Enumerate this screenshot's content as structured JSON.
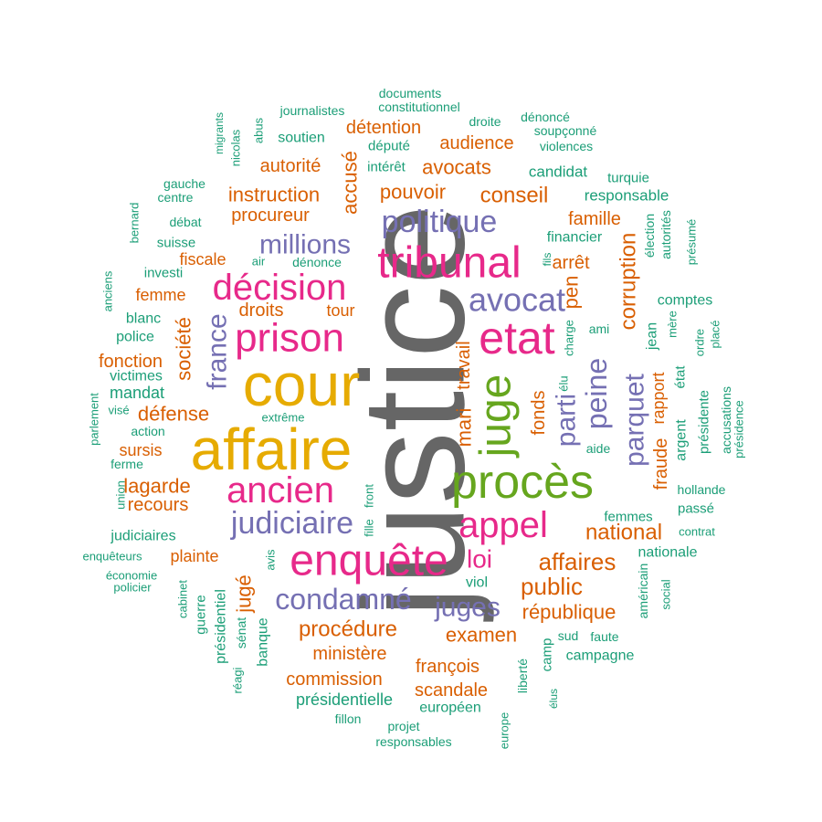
{
  "colors": {
    "teal": "#1b9e77",
    "orange": "#d95f02",
    "purple": "#7570b3",
    "magenta": "#e7298a",
    "green": "#66a61e",
    "gold": "#e6ab02",
    "dark": "#666666"
  },
  "words": [
    {
      "text": "justice",
      "color": "dark"
    },
    {
      "text": "affaire",
      "color": "gold"
    },
    {
      "text": "cour",
      "color": "gold"
    },
    {
      "text": "procès",
      "color": "green"
    },
    {
      "text": "juge",
      "color": "green"
    },
    {
      "text": "etat",
      "color": "magenta"
    },
    {
      "text": "tribunal",
      "color": "magenta"
    },
    {
      "text": "enquête",
      "color": "magenta"
    },
    {
      "text": "prison",
      "color": "magenta"
    },
    {
      "text": "décision",
      "color": "magenta"
    },
    {
      "text": "ancien",
      "color": "magenta"
    },
    {
      "text": "appel",
      "color": "magenta"
    },
    {
      "text": "avocat",
      "color": "purple"
    },
    {
      "text": "politique",
      "color": "purple"
    },
    {
      "text": "millions",
      "color": "purple"
    },
    {
      "text": "judiciaire",
      "color": "purple"
    },
    {
      "text": "condamné",
      "color": "purple"
    },
    {
      "text": "juges",
      "color": "purple"
    },
    {
      "text": "peine",
      "color": "purple"
    },
    {
      "text": "parti",
      "color": "purple"
    },
    {
      "text": "parquet",
      "color": "purple"
    },
    {
      "text": "france",
      "color": "purple"
    },
    {
      "text": "loi",
      "color": "magenta"
    },
    {
      "text": "public",
      "color": "orange"
    },
    {
      "text": "affaires",
      "color": "orange"
    },
    {
      "text": "national",
      "color": "orange"
    },
    {
      "text": "procédure",
      "color": "orange"
    },
    {
      "text": "examen",
      "color": "orange"
    },
    {
      "text": "république",
      "color": "orange"
    },
    {
      "text": "corruption",
      "color": "orange"
    },
    {
      "text": "conseil",
      "color": "orange"
    },
    {
      "text": "pouvoir",
      "color": "orange"
    },
    {
      "text": "avocats",
      "color": "orange"
    },
    {
      "text": "audience",
      "color": "orange"
    },
    {
      "text": "instruction",
      "color": "orange"
    },
    {
      "text": "procureur",
      "color": "orange"
    },
    {
      "text": "autorité",
      "color": "orange"
    },
    {
      "text": "détention",
      "color": "orange"
    },
    {
      "text": "accusé",
      "color": "orange"
    },
    {
      "text": "famille",
      "color": "orange"
    },
    {
      "text": "arrêt",
      "color": "orange"
    },
    {
      "text": "pen",
      "color": "orange"
    },
    {
      "text": "mari",
      "color": "orange"
    },
    {
      "text": "travail",
      "color": "orange"
    },
    {
      "text": "fonds",
      "color": "orange"
    },
    {
      "text": "fraude",
      "color": "orange"
    },
    {
      "text": "rapport",
      "color": "orange"
    },
    {
      "text": "lagarde",
      "color": "orange"
    },
    {
      "text": "recours",
      "color": "orange"
    },
    {
      "text": "défense",
      "color": "orange"
    },
    {
      "text": "société",
      "color": "orange"
    },
    {
      "text": "fonction",
      "color": "orange"
    },
    {
      "text": "droits",
      "color": "orange"
    },
    {
      "text": "tour",
      "color": "orange"
    },
    {
      "text": "fiscale",
      "color": "orange"
    },
    {
      "text": "femme",
      "color": "orange"
    },
    {
      "text": "sursis",
      "color": "orange"
    },
    {
      "text": "plainte",
      "color": "orange"
    },
    {
      "text": "jugé",
      "color": "orange"
    },
    {
      "text": "commission",
      "color": "orange"
    },
    {
      "text": "ministère",
      "color": "orange"
    },
    {
      "text": "françois",
      "color": "orange"
    },
    {
      "text": "scandale",
      "color": "orange"
    },
    {
      "text": "documents",
      "color": "teal"
    },
    {
      "text": "constitutionnel",
      "color": "teal"
    },
    {
      "text": "journalistes",
      "color": "teal"
    },
    {
      "text": "droite",
      "color": "teal"
    },
    {
      "text": "dénoncé",
      "color": "teal"
    },
    {
      "text": "soupçonné",
      "color": "teal"
    },
    {
      "text": "violences",
      "color": "teal"
    },
    {
      "text": "migrants",
      "color": "teal"
    },
    {
      "text": "nicolas",
      "color": "teal"
    },
    {
      "text": "abus",
      "color": "teal"
    },
    {
      "text": "soutien",
      "color": "teal"
    },
    {
      "text": "député",
      "color": "teal"
    },
    {
      "text": "intérêt",
      "color": "teal"
    },
    {
      "text": "candidat",
      "color": "teal"
    },
    {
      "text": "turquie",
      "color": "teal"
    },
    {
      "text": "gauche",
      "color": "teal"
    },
    {
      "text": "centre",
      "color": "teal"
    },
    {
      "text": "responsable",
      "color": "teal"
    },
    {
      "text": "bernard",
      "color": "teal"
    },
    {
      "text": "débat",
      "color": "teal"
    },
    {
      "text": "suisse",
      "color": "teal"
    },
    {
      "text": "financier",
      "color": "teal"
    },
    {
      "text": "élection",
      "color": "teal"
    },
    {
      "text": "autorités",
      "color": "teal"
    },
    {
      "text": "présumé",
      "color": "teal"
    },
    {
      "text": "fils",
      "color": "teal"
    },
    {
      "text": "air",
      "color": "teal"
    },
    {
      "text": "dénonce",
      "color": "teal"
    },
    {
      "text": "anciens",
      "color": "teal"
    },
    {
      "text": "investi",
      "color": "teal"
    },
    {
      "text": "comptes",
      "color": "teal"
    },
    {
      "text": "blanc",
      "color": "teal"
    },
    {
      "text": "charge",
      "color": "teal"
    },
    {
      "text": "jean",
      "color": "teal"
    },
    {
      "text": "mère",
      "color": "teal"
    },
    {
      "text": "police",
      "color": "teal"
    },
    {
      "text": "ami",
      "color": "teal"
    },
    {
      "text": "ordre",
      "color": "teal"
    },
    {
      "text": "placé",
      "color": "teal"
    },
    {
      "text": "élu",
      "color": "teal"
    },
    {
      "text": "état",
      "color": "teal"
    },
    {
      "text": "victimes",
      "color": "teal"
    },
    {
      "text": "mandat",
      "color": "teal"
    },
    {
      "text": "parlement",
      "color": "teal"
    },
    {
      "text": "visé",
      "color": "teal"
    },
    {
      "text": "action",
      "color": "teal"
    },
    {
      "text": "extrême",
      "color": "teal"
    },
    {
      "text": "argent",
      "color": "teal"
    },
    {
      "text": "présidente",
      "color": "teal"
    },
    {
      "text": "accusations",
      "color": "teal"
    },
    {
      "text": "présidence",
      "color": "teal"
    },
    {
      "text": "aide",
      "color": "teal"
    },
    {
      "text": "ferme",
      "color": "teal"
    },
    {
      "text": "hollande",
      "color": "teal"
    },
    {
      "text": "union",
      "color": "teal"
    },
    {
      "text": "front",
      "color": "teal"
    },
    {
      "text": "fille",
      "color": "teal"
    },
    {
      "text": "passé",
      "color": "teal"
    },
    {
      "text": "femmes",
      "color": "teal"
    },
    {
      "text": "judiciaires",
      "color": "teal"
    },
    {
      "text": "contrat",
      "color": "teal"
    },
    {
      "text": "enquêteurs",
      "color": "teal"
    },
    {
      "text": "nationale",
      "color": "teal"
    },
    {
      "text": "économie",
      "color": "teal"
    },
    {
      "text": "policier",
      "color": "teal"
    },
    {
      "text": "avis",
      "color": "teal"
    },
    {
      "text": "cabinet",
      "color": "teal"
    },
    {
      "text": "américain",
      "color": "teal"
    },
    {
      "text": "social",
      "color": "teal"
    },
    {
      "text": "viol",
      "color": "teal"
    },
    {
      "text": "présidentiel",
      "color": "teal"
    },
    {
      "text": "guerre",
      "color": "teal"
    },
    {
      "text": "banque",
      "color": "teal"
    },
    {
      "text": "sénat",
      "color": "teal"
    },
    {
      "text": "réagi",
      "color": "teal"
    },
    {
      "text": "camp",
      "color": "teal"
    },
    {
      "text": "sud",
      "color": "teal"
    },
    {
      "text": "faute",
      "color": "teal"
    },
    {
      "text": "campagne",
      "color": "teal"
    },
    {
      "text": "liberté",
      "color": "teal"
    },
    {
      "text": "présidentielle",
      "color": "teal"
    },
    {
      "text": "européen",
      "color": "teal"
    },
    {
      "text": "élus",
      "color": "teal"
    },
    {
      "text": "fillon",
      "color": "teal"
    },
    {
      "text": "projet",
      "color": "teal"
    },
    {
      "text": "responsables",
      "color": "teal"
    },
    {
      "text": "europe",
      "color": "teal"
    }
  ]
}
